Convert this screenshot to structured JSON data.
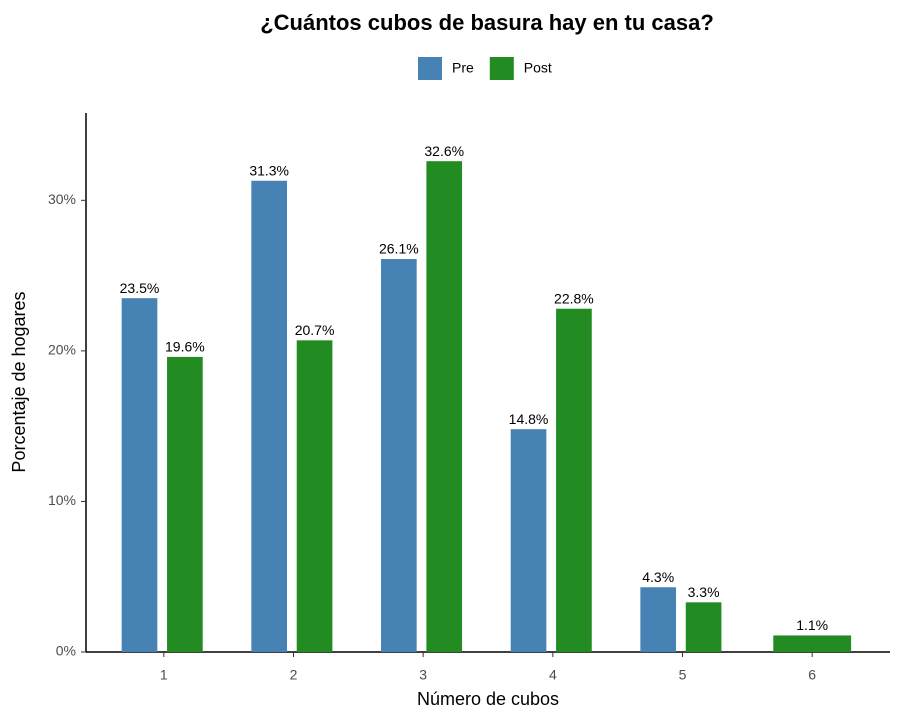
{
  "chart_data": {
    "type": "bar",
    "title": "¿Cuántos cubos de basura hay en tu casa?",
    "x_label": "Número de cubos",
    "y_label": "Porcentaje de hogares",
    "categories": [
      "1",
      "2",
      "3",
      "4",
      "5",
      "6"
    ],
    "series": [
      {
        "name": "Pre",
        "color": "#4682b4",
        "values": [
          23.5,
          31.3,
          26.1,
          14.8,
          4.3,
          null
        ],
        "value_labels": [
          "23.5%",
          "31.3%",
          "26.1%",
          "14.8%",
          "4.3%",
          null
        ]
      },
      {
        "name": "Post",
        "color": "#228b22",
        "values": [
          19.6,
          20.7,
          32.6,
          22.8,
          3.3,
          1.1
        ],
        "value_labels": [
          "19.6%",
          "20.7%",
          "32.6%",
          "22.8%",
          "3.3%",
          "1.1%"
        ]
      }
    ],
    "ylim": [
      0,
      35.8
    ],
    "yticks": [
      {
        "value": 0,
        "label": "0%"
      },
      {
        "value": 10,
        "label": "10%"
      },
      {
        "value": 20,
        "label": "20%"
      },
      {
        "value": 30,
        "label": "30%"
      }
    ],
    "legend": "top"
  }
}
